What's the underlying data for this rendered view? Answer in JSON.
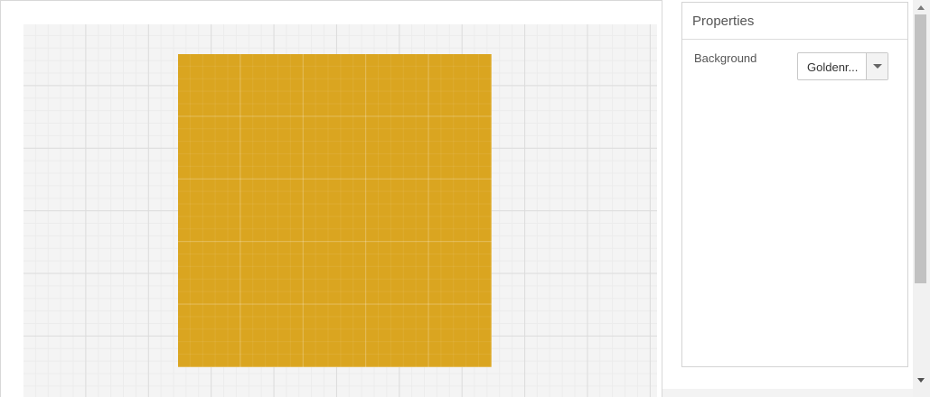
{
  "properties": {
    "title": "Properties",
    "background": {
      "label": "Background",
      "value": "Goldenr...",
      "color": "#daa520"
    }
  },
  "canvas": {
    "node_fill": "#daa520",
    "grid": true
  },
  "icons": {
    "dropdown": "chevron-down-icon",
    "scroll_up": "arrow-up-icon",
    "scroll_down": "arrow-down-icon"
  }
}
